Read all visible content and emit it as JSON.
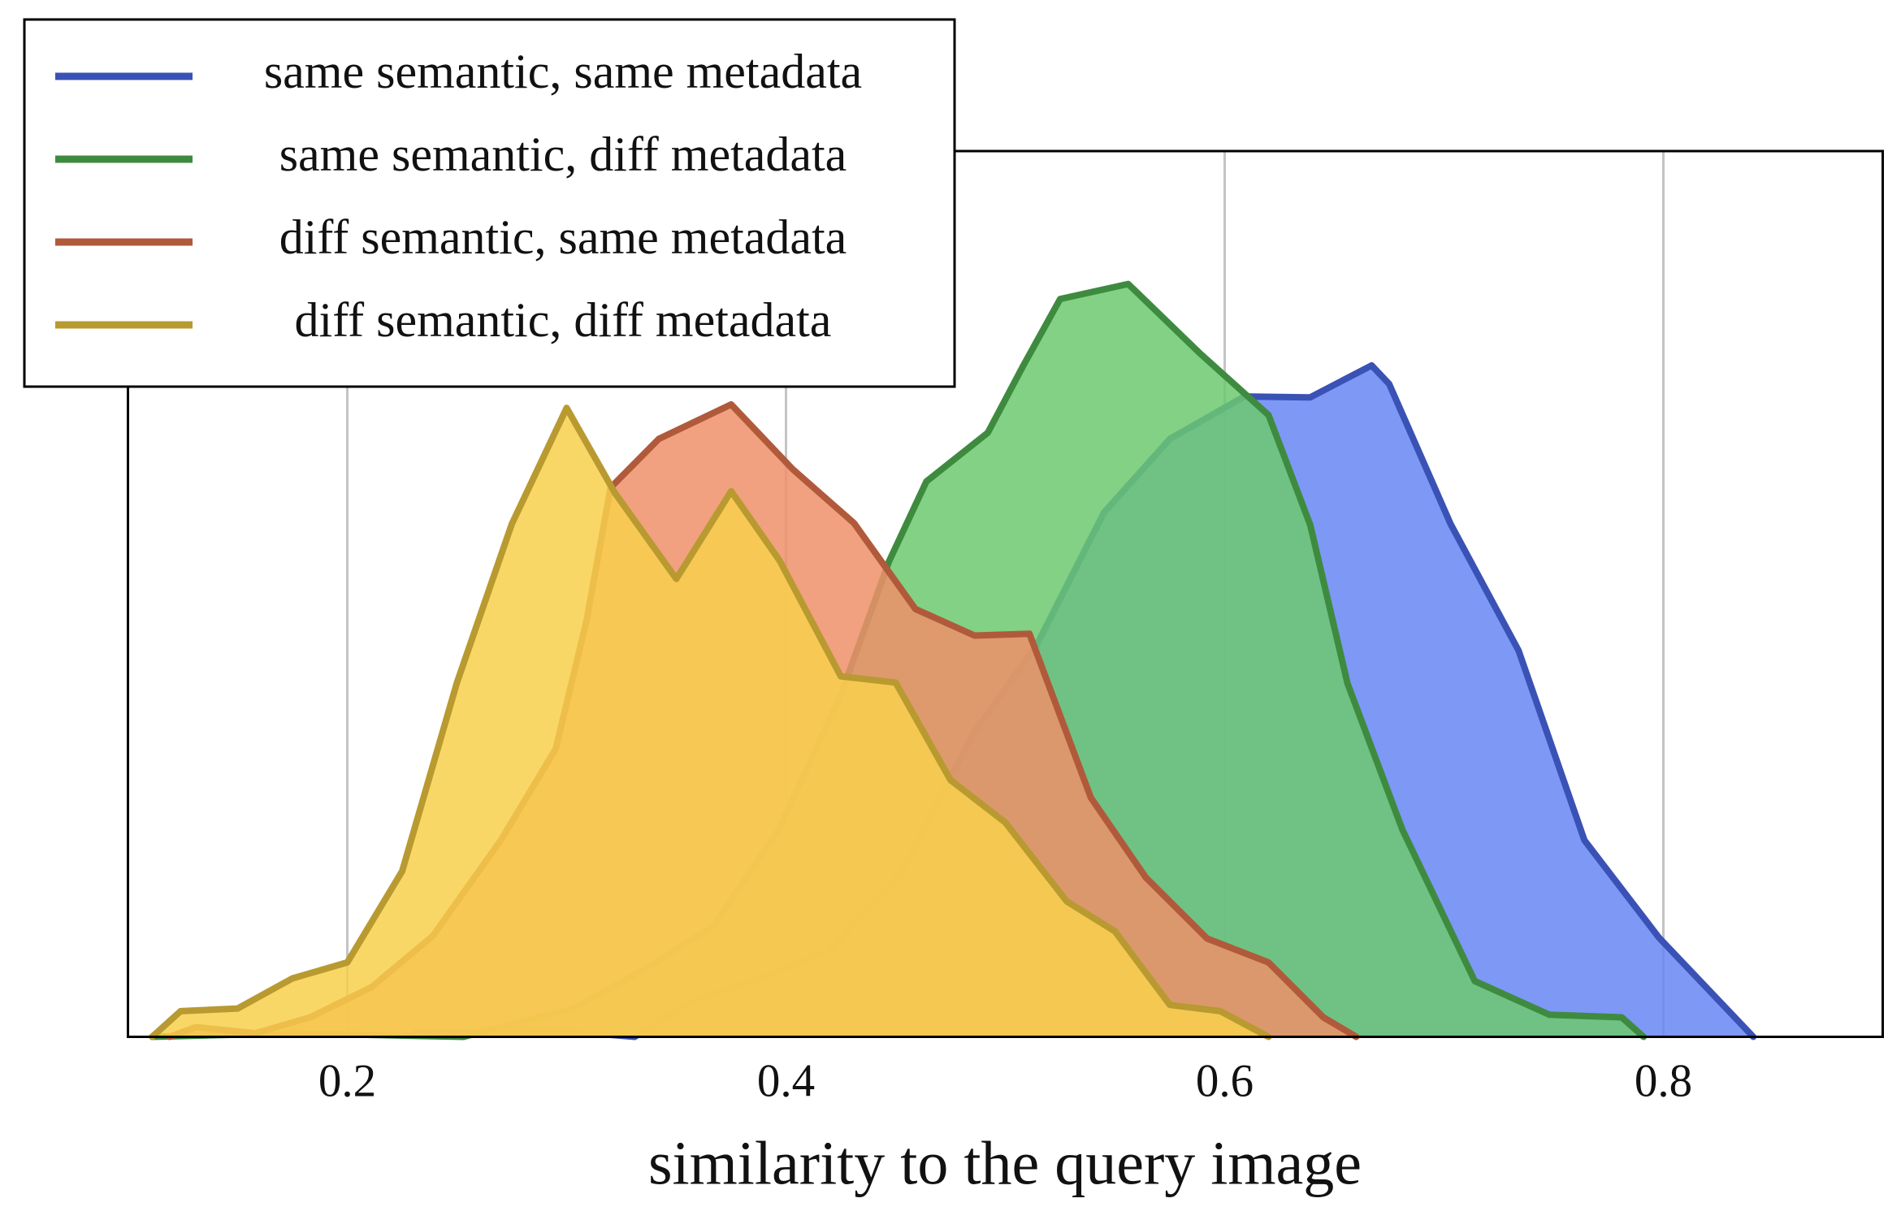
{
  "chart_data": {
    "type": "area",
    "xlabel": "similarity to the query image",
    "xlim": [
      0.1,
      0.9
    ],
    "xticks": [
      0.2,
      0.4,
      0.6,
      0.8
    ],
    "ylim": [
      0,
      1
    ],
    "grid": true,
    "legend": "upper left",
    "series": [
      {
        "name": "same semantic, same metadata",
        "color": "#3a52b5",
        "fill": "#6786f3",
        "x": [
          0.231,
          0.297,
          0.331,
          0.359,
          0.392,
          0.42,
          0.453,
          0.486,
          0.514,
          0.545,
          0.575,
          0.609,
          0.639,
          0.653,
          0.667,
          0.675,
          0.703,
          0.734,
          0.764,
          0.798,
          0.841
        ],
        "values": [
          0.004,
          0.007,
          0,
          0.043,
          0.07,
          0.098,
          0.187,
          0.345,
          0.441,
          0.592,
          0.675,
          0.723,
          0.722,
          0.74,
          0.758,
          0.737,
          0.579,
          0.436,
          0.222,
          0.112,
          0
        ]
      },
      {
        "name": "same semantic, diff metadata",
        "color": "#3e8b40",
        "fill": "#6cc970",
        "x": [
          0.111,
          0.175,
          0.253,
          0.303,
          0.336,
          0.367,
          0.397,
          0.425,
          0.447,
          0.464,
          0.492,
          0.508,
          0.525,
          0.556,
          0.589,
          0.62,
          0.639,
          0.656,
          0.681,
          0.714,
          0.748,
          0.781,
          0.791
        ],
        "values": [
          0,
          0.004,
          0,
          0.032,
          0.077,
          0.125,
          0.235,
          0.386,
          0.537,
          0.627,
          0.682,
          0.757,
          0.833,
          0.85,
          0.771,
          0.702,
          0.578,
          0.399,
          0.234,
          0.063,
          0.025,
          0.022,
          0
        ]
      },
      {
        "name": "diff semantic, same metadata",
        "color": "#b05a3b",
        "fill": "#ef9069",
        "x": [
          0.119,
          0.131,
          0.158,
          0.183,
          0.211,
          0.239,
          0.27,
          0.295,
          0.309,
          0.32,
          0.342,
          0.375,
          0.403,
          0.431,
          0.459,
          0.486,
          0.511,
          0.539,
          0.564,
          0.592,
          0.62,
          0.645,
          0.66
        ],
        "values": [
          0,
          0.011,
          0.004,
          0.022,
          0.056,
          0.114,
          0.222,
          0.325,
          0.469,
          0.62,
          0.675,
          0.714,
          0.641,
          0.58,
          0.483,
          0.453,
          0.455,
          0.27,
          0.18,
          0.111,
          0.084,
          0.022,
          0
        ]
      },
      {
        "name": "diff semantic, diff metadata",
        "color": "#b89a30",
        "fill": "#f8d04c",
        "x": [
          0.111,
          0.124,
          0.15,
          0.175,
          0.2,
          0.225,
          0.25,
          0.275,
          0.3,
          0.322,
          0.35,
          0.375,
          0.397,
          0.425,
          0.45,
          0.475,
          0.5,
          0.528,
          0.55,
          0.575,
          0.598,
          0.62
        ],
        "values": [
          0,
          0.029,
          0.032,
          0.066,
          0.084,
          0.187,
          0.4,
          0.579,
          0.71,
          0.614,
          0.517,
          0.616,
          0.538,
          0.407,
          0.4,
          0.29,
          0.242,
          0.153,
          0.119,
          0.036,
          0.029,
          0
        ]
      }
    ]
  }
}
